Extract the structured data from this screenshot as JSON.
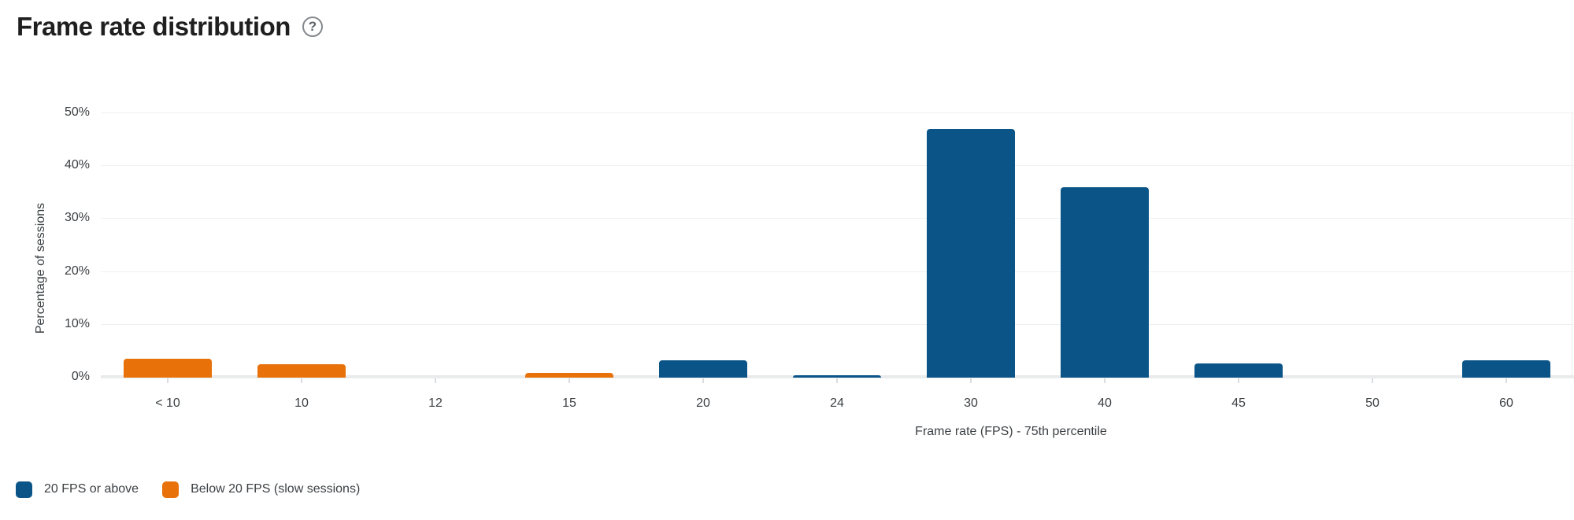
{
  "header": {
    "title": "Frame rate distribution",
    "help_glyph": "?"
  },
  "chart_data": {
    "type": "bar",
    "title": "Frame rate distribution",
    "xlabel": "Frame rate (FPS) - 75th percentile",
    "ylabel": "Percentage of sessions",
    "categories": [
      "< 10",
      "10",
      "12",
      "15",
      "20",
      "24",
      "30",
      "40",
      "45",
      "50",
      "60"
    ],
    "series": [
      {
        "name": "20 FPS or above",
        "color": "#0a5487",
        "values": [
          null,
          null,
          null,
          null,
          3.3,
          0.5,
          47,
          36,
          2.7,
          0,
          3.2
        ]
      },
      {
        "name": "Below 20 FPS (slow sessions)",
        "color": "#e8710a",
        "values": [
          3.5,
          2.5,
          0,
          0.9,
          null,
          null,
          null,
          null,
          null,
          null,
          null
        ]
      }
    ],
    "ylim": [
      0,
      50
    ],
    "yticks": [
      "0%",
      "10%",
      "20%",
      "30%",
      "40%",
      "50%"
    ],
    "grid": true,
    "legend_position": "bottom-left"
  },
  "colors": {
    "blue": "#0a5487",
    "orange": "#e8710a",
    "gridline": "#eef0f3",
    "axis_line": "#e9ebec",
    "tick_mark": "#dadce0",
    "text": "#3c4043",
    "title_text": "#1f1f1f",
    "help_icon": "#85898d"
  }
}
